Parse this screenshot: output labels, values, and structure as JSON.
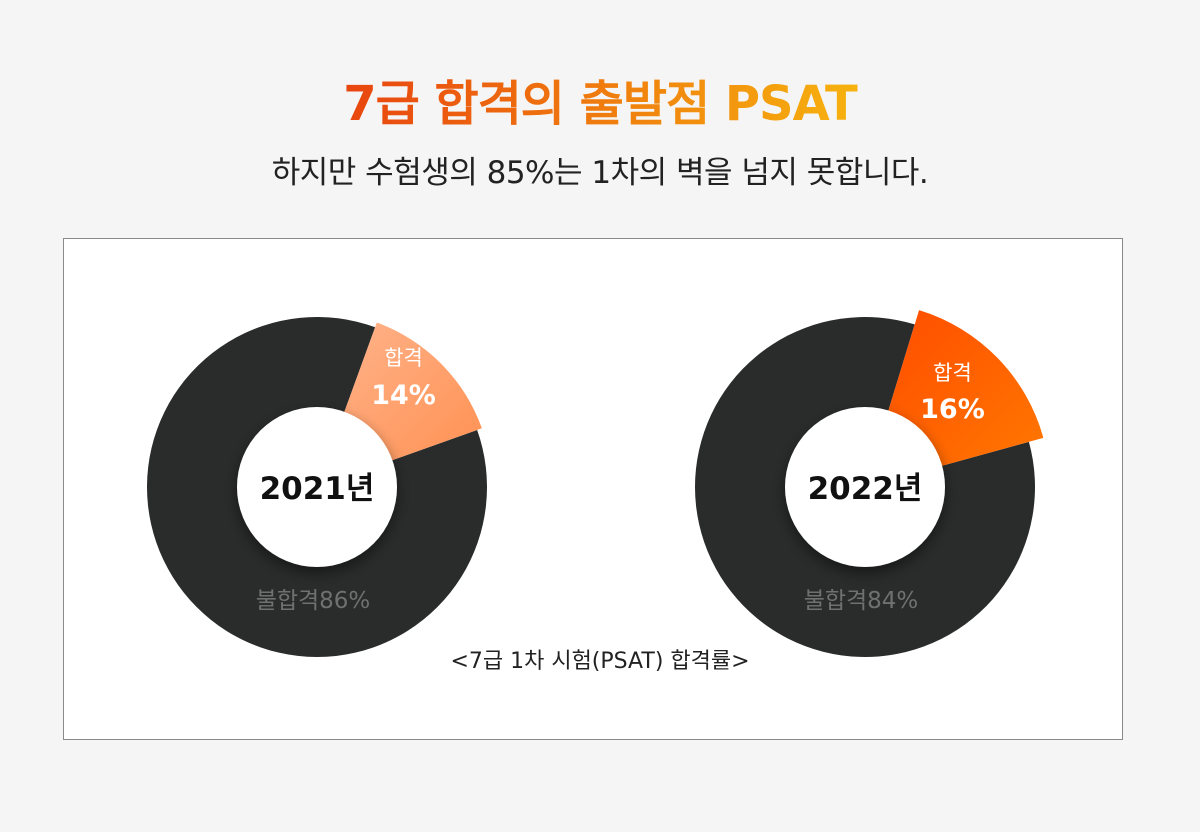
{
  "header": {
    "title": "7급 합격의 출발점 PSAT",
    "subtitle": "하지만 수험생의 85%는 1차의 벽을 넘지 못합니다."
  },
  "colors": {
    "title_gradient_start": "#e8420f",
    "title_gradient_end": "#f7b50e",
    "fail_slice": "#2a2b2b",
    "fail_label": "#6f7070",
    "pass_2021_start": "#ffb18a",
    "pass_2021_end": "#ff8c4a",
    "pass_2022_start": "#ff4a00",
    "pass_2022_end": "#ff7a00"
  },
  "chart_data": [
    {
      "type": "pie",
      "center_label": "2021년",
      "slices": [
        {
          "label": "합격",
          "value": 14,
          "value_label": "14%"
        },
        {
          "label": "불합격",
          "value": 86,
          "value_label": "불합격86%"
        }
      ]
    },
    {
      "type": "pie",
      "center_label": "2022년",
      "slices": [
        {
          "label": "합격",
          "value": 16,
          "value_label": "16%"
        },
        {
          "label": "불합격",
          "value": 84,
          "value_label": "불합격84%"
        }
      ]
    }
  ],
  "caption": "<7급 1차 시험(PSAT) 합격률>"
}
